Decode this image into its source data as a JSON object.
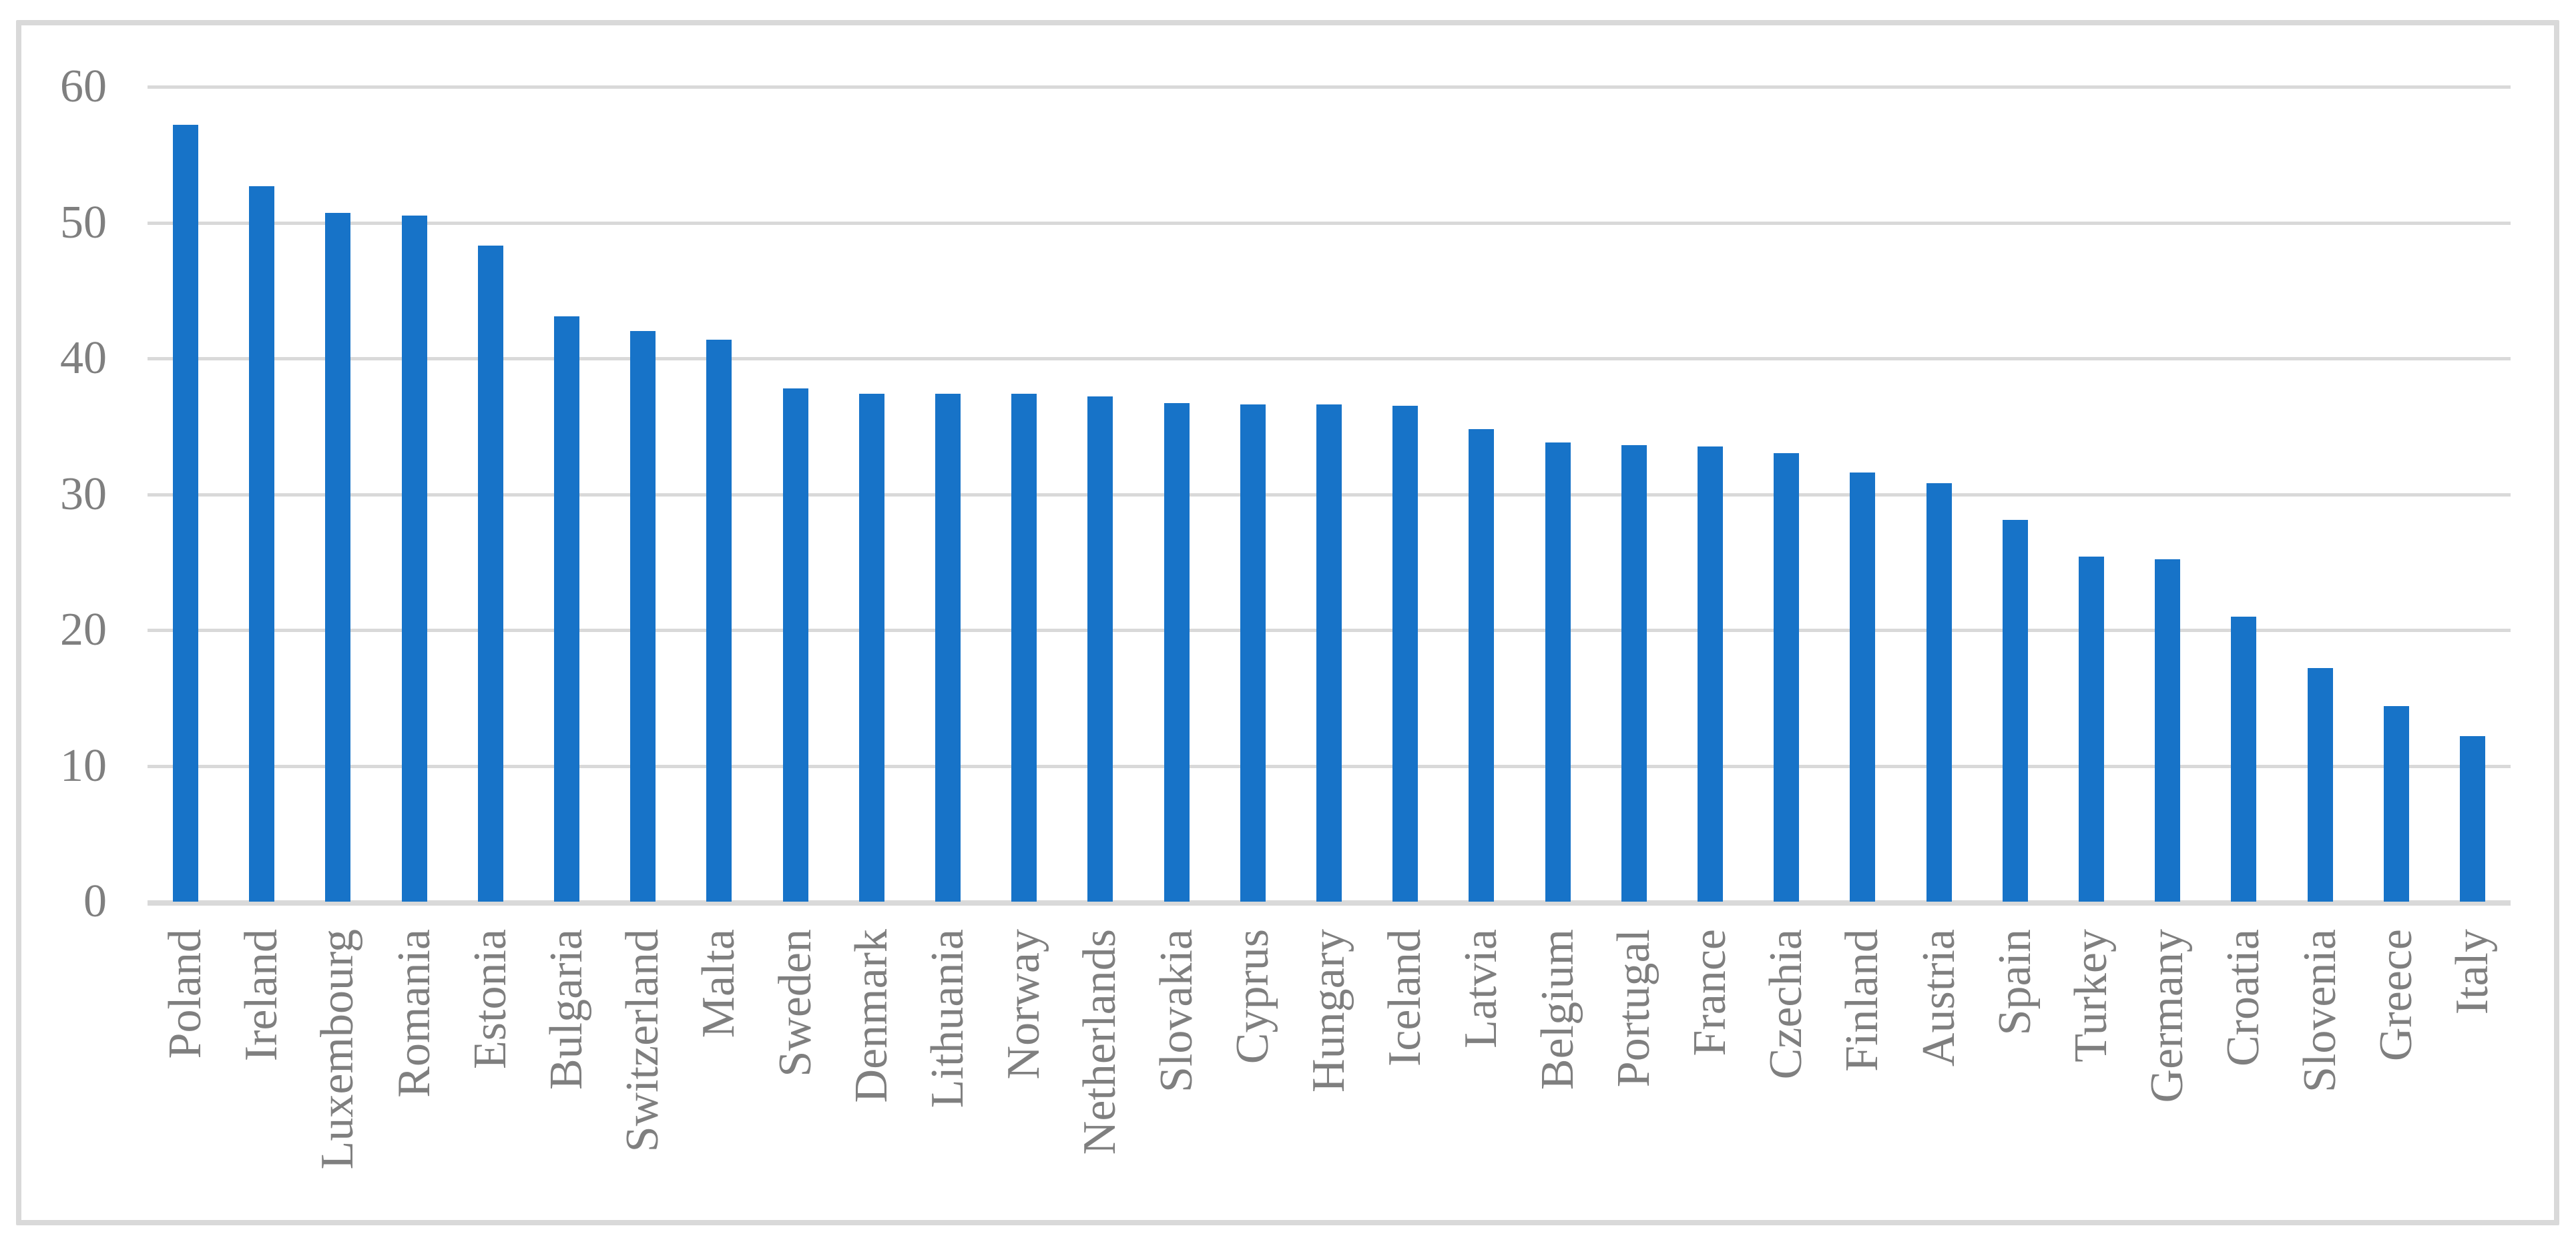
{
  "chart_data": {
    "type": "bar",
    "categories": [
      "Poland",
      "Ireland",
      "Luxembourg",
      "Romania",
      "Estonia",
      "Bulgaria",
      "Switzerland",
      "Malta",
      "Sweden",
      "Denmark",
      "Lithuania",
      "Norway",
      "Netherlands",
      "Slovakia",
      "Cyprus",
      "Hungary",
      "Iceland",
      "Latvia",
      "Belgium",
      "Portugal",
      "France",
      "Czechia",
      "Finland",
      "Austria",
      "Spain",
      "Turkey",
      "Germany",
      "Croatia",
      "Slovenia",
      "Greece",
      "Italy"
    ],
    "values": [
      57.2,
      52.7,
      50.7,
      50.5,
      48.3,
      43.1,
      42.0,
      41.4,
      37.8,
      37.4,
      37.4,
      37.4,
      37.2,
      36.7,
      36.6,
      36.6,
      36.5,
      34.8,
      33.8,
      33.6,
      33.5,
      33.0,
      31.6,
      30.8,
      28.1,
      25.4,
      25.2,
      21.0,
      17.2,
      14.4,
      12.2
    ],
    "ylim": [
      0,
      60
    ],
    "yticks": [
      0,
      10,
      20,
      30,
      40,
      50,
      60
    ],
    "grid": "horizontal-gridlines-on",
    "legend": "none",
    "bar_color": "#1773C8",
    "gridline_color": "#D9D9D9",
    "axis_line_color": "#D9D9D9",
    "frame_border_color": "#D9D9D9",
    "tick_label_color": "#7F7F7F",
    "background_color": "#FFFFFF"
  }
}
